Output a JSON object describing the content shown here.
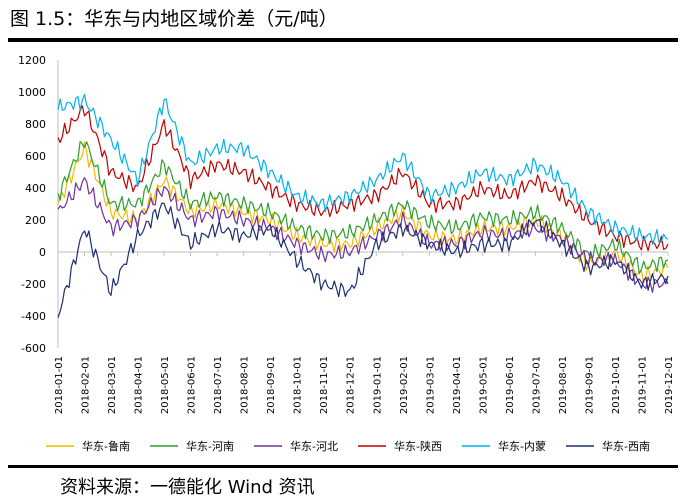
{
  "figure": {
    "title": "图 1.5：华东与内地区域价差（元/吨）",
    "source": "资料来源：一德能化  Wind 资讯"
  },
  "chart_data": {
    "type": "line",
    "title": "图 1.5：华东与内地区域价差（元/吨）",
    "xlabel": "",
    "ylabel": "元/吨",
    "ylim": [
      -600,
      1200
    ],
    "yticks": [
      -600,
      -400,
      -200,
      0,
      200,
      400,
      600,
      800,
      1000,
      1200
    ],
    "grid": false,
    "legend_position": "bottom",
    "x": [
      "2018-01-01",
      "2018-02-01",
      "2018-03-01",
      "2018-04-01",
      "2018-05-01",
      "2018-06-01",
      "2018-07-01",
      "2018-08-01",
      "2018-09-01",
      "2018-10-01",
      "2018-11-01",
      "2018-12-01",
      "2019-01-01",
      "2019-02-01",
      "2019-03-01",
      "2019-04-01",
      "2019-05-01",
      "2019-06-01",
      "2019-07-01",
      "2019-08-01",
      "2019-09-01",
      "2019-10-01",
      "2019-11-01",
      "2019-12-01"
    ],
    "series": [
      {
        "name": "华东-鲁南",
        "color": "#f5b800",
        "values": [
          300,
          650,
          250,
          200,
          450,
          250,
          300,
          250,
          200,
          100,
          50,
          50,
          150,
          250,
          100,
          80,
          150,
          150,
          200,
          100,
          -80,
          0,
          -150,
          -100
        ]
      },
      {
        "name": "华东-河南",
        "color": "#2ca02c",
        "values": [
          350,
          700,
          300,
          300,
          550,
          300,
          350,
          300,
          250,
          150,
          100,
          120,
          200,
          300,
          180,
          150,
          220,
          200,
          250,
          150,
          -20,
          50,
          -100,
          -50
        ]
      },
      {
        "name": "华东-河北",
        "color": "#7030a0",
        "values": [
          250,
          450,
          150,
          200,
          400,
          200,
          250,
          200,
          150,
          50,
          -20,
          0,
          100,
          200,
          50,
          50,
          120,
          100,
          150,
          80,
          -50,
          -50,
          -200,
          -200
        ]
      },
      {
        "name": "华东-陕西",
        "color": "#c00000",
        "values": [
          700,
          900,
          500,
          400,
          800,
          450,
          550,
          500,
          400,
          300,
          250,
          300,
          350,
          500,
          300,
          300,
          400,
          350,
          450,
          350,
          200,
          100,
          50,
          50
        ]
      },
      {
        "name": "华东-内蒙",
        "color": "#00b0f0",
        "values": [
          900,
          950,
          700,
          450,
          950,
          550,
          650,
          650,
          500,
          350,
          300,
          350,
          450,
          600,
          350,
          400,
          500,
          450,
          550,
          450,
          250,
          150,
          100,
          80
        ]
      },
      {
        "name": "华东-西南",
        "color": "#1f2f6e",
        "values": [
          -400,
          150,
          -250,
          100,
          300,
          50,
          150,
          100,
          150,
          -50,
          -200,
          -250,
          50,
          150,
          50,
          0,
          50,
          50,
          200,
          50,
          -100,
          -50,
          -200,
          -150
        ]
      }
    ]
  }
}
